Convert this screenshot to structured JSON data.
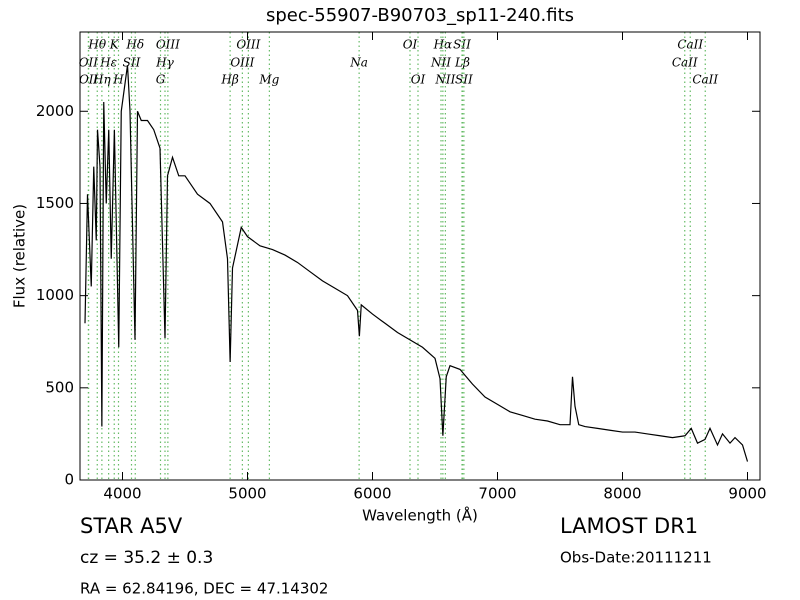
{
  "chart_data": {
    "type": "line",
    "title": "spec-55907-B90703_sp11-240.fits",
    "xlabel": "Wavelength (Å)",
    "ylabel": "Flux (relative)",
    "xlim": [
      3660,
      9100
    ],
    "ylim": [
      0,
      2430
    ],
    "xticks": [
      4000,
      5000,
      6000,
      7000,
      8000,
      9000
    ],
    "yticks": [
      0,
      500,
      1000,
      1500,
      2000
    ],
    "series": [
      {
        "name": "spectrum",
        "color": "#000000",
        "x": [
          3700,
          3720,
          3750,
          3770,
          3790,
          3800,
          3820,
          3835,
          3850,
          3870,
          3890,
          3910,
          3935,
          3950,
          3970,
          3990,
          4020,
          4040,
          4060,
          4100,
          4120,
          4150,
          4200,
          4250,
          4300,
          4340,
          4360,
          4400,
          4450,
          4500,
          4600,
          4700,
          4800,
          4840,
          4861,
          4880,
          4950,
          5000,
          5100,
          5200,
          5300,
          5400,
          5500,
          5600,
          5700,
          5800,
          5880,
          5895,
          5910,
          6000,
          6100,
          6200,
          6300,
          6400,
          6500,
          6540,
          6563,
          6590,
          6620,
          6700,
          6800,
          6900,
          7000,
          7100,
          7200,
          7300,
          7400,
          7500,
          7580,
          7600,
          7620,
          7650,
          7700,
          7800,
          7900,
          8000,
          8100,
          8200,
          8300,
          8400,
          8500,
          8550,
          8600,
          8660,
          8700,
          8760,
          8800,
          8860,
          8900,
          8960,
          9000
        ],
        "values": [
          850,
          1550,
          1050,
          1700,
          1300,
          1900,
          1700,
          290,
          2050,
          1500,
          1900,
          1200,
          1900,
          1400,
          720,
          2000,
          2150,
          2250,
          2000,
          760,
          2000,
          1950,
          1950,
          1900,
          1800,
          770,
          1650,
          1750,
          1650,
          1650,
          1550,
          1500,
          1400,
          1200,
          640,
          1150,
          1370,
          1320,
          1270,
          1250,
          1220,
          1180,
          1130,
          1080,
          1040,
          1000,
          920,
          780,
          950,
          900,
          850,
          800,
          760,
          720,
          660,
          550,
          240,
          560,
          620,
          600,
          520,
          450,
          410,
          370,
          350,
          330,
          320,
          300,
          300,
          560,
          400,
          300,
          290,
          280,
          270,
          260,
          260,
          250,
          240,
          230,
          240,
          280,
          200,
          220,
          280,
          190,
          250,
          200,
          230,
          190,
          100
        ]
      }
    ],
    "spectral_lines": [
      {
        "label": "Hθ",
        "x": 3798
      },
      {
        "label": "K",
        "x": 3934
      },
      {
        "label": "Hδ",
        "x": 4102
      },
      {
        "label": "OIII",
        "x": 4363
      },
      {
        "label": "OIII",
        "x": 5007
      },
      {
        "label": "OI",
        "x": 6300
      },
      {
        "label": "Hα",
        "x": 6563
      },
      {
        "label": "SII",
        "x": 6716
      },
      {
        "label": "CaII",
        "x": 8542
      },
      {
        "label": "OII",
        "x": 3727
      },
      {
        "label": "Hε",
        "x": 3889
      },
      {
        "label": "SII",
        "x": 4072
      },
      {
        "label": "Hγ",
        "x": 4340
      },
      {
        "label": "OIII",
        "x": 4959
      },
      {
        "label": "Na",
        "x": 5893
      },
      {
        "label": "NII",
        "x": 6548
      },
      {
        "label": "Lβ",
        "x": 6720
      },
      {
        "label": "CaII",
        "x": 8498
      },
      {
        "label": "OII",
        "x": 3729
      },
      {
        "label": "Hη",
        "x": 3835
      },
      {
        "label": "H",
        "x": 3968
      },
      {
        "label": "G",
        "x": 4304
      },
      {
        "label": "Hβ",
        "x": 4861
      },
      {
        "label": "Mg",
        "x": 5175
      },
      {
        "label": "OI",
        "x": 6364
      },
      {
        "label": "NII",
        "x": 6583
      },
      {
        "label": "SII",
        "x": 6731
      },
      {
        "label": "CaII",
        "x": 8662
      }
    ],
    "line_color": "#66bb66",
    "info": {
      "object": "STAR   A5V",
      "cz": "cz = 35.2  ± 0.3",
      "coords": "RA = 62.84196, DEC = 47.14302",
      "survey": "LAMOST DR1",
      "date": "Obs-Date:20111211"
    }
  }
}
